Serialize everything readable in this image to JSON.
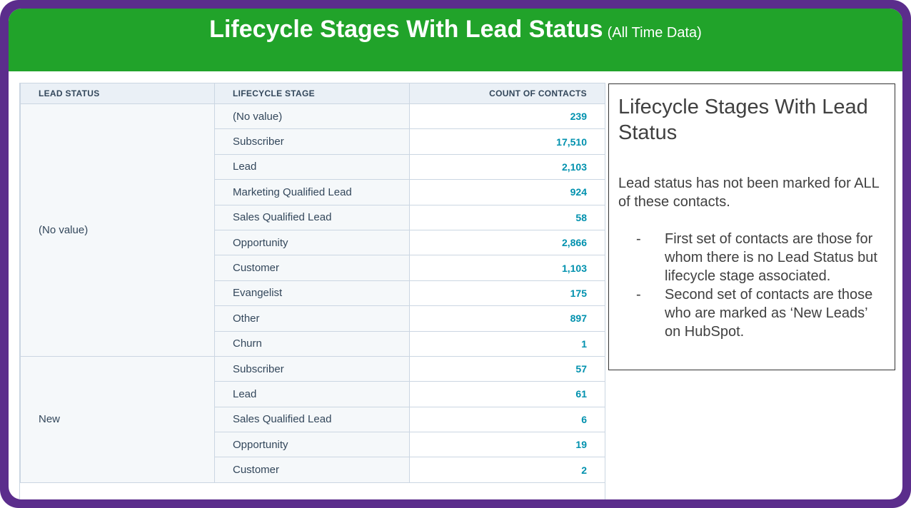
{
  "banner": {
    "title": "Lifecycle Stages With Lead Status",
    "subtitle": "(All Time Data)"
  },
  "table": {
    "headers": [
      "LEAD STATUS",
      "LIFECYCLE STAGE",
      "COUNT OF CONTACTS"
    ],
    "groups": [
      {
        "lead_status": "(No value)",
        "rows": [
          {
            "stage": "(No value)",
            "count": "239"
          },
          {
            "stage": "Subscriber",
            "count": "17,510"
          },
          {
            "stage": "Lead",
            "count": "2,103"
          },
          {
            "stage": "Marketing Qualified Lead",
            "count": "924"
          },
          {
            "stage": "Sales Qualified Lead",
            "count": "58"
          },
          {
            "stage": "Opportunity",
            "count": "2,866"
          },
          {
            "stage": "Customer",
            "count": "1,103"
          },
          {
            "stage": "Evangelist",
            "count": "175"
          },
          {
            "stage": "Other",
            "count": "897"
          },
          {
            "stage": "Churn",
            "count": "1"
          }
        ]
      },
      {
        "lead_status": "New",
        "rows": [
          {
            "stage": "Subscriber",
            "count": "57"
          },
          {
            "stage": "Lead",
            "count": "61"
          },
          {
            "stage": "Sales Qualified Lead",
            "count": "6"
          },
          {
            "stage": "Opportunity",
            "count": "19"
          },
          {
            "stage": "Customer",
            "count": "2"
          }
        ]
      }
    ]
  },
  "note": {
    "title": "Lifecycle Stages With Lead Status",
    "body": "Lead status has not been marked for ALL of these contacts.",
    "bullets": [
      "First set of contacts are those for whom there is no Lead Status but lifecycle stage associated.",
      "Second set of contacts are those who are marked as ‘New Leads’ on HubSpot."
    ],
    "bullet_marker": "-"
  }
}
